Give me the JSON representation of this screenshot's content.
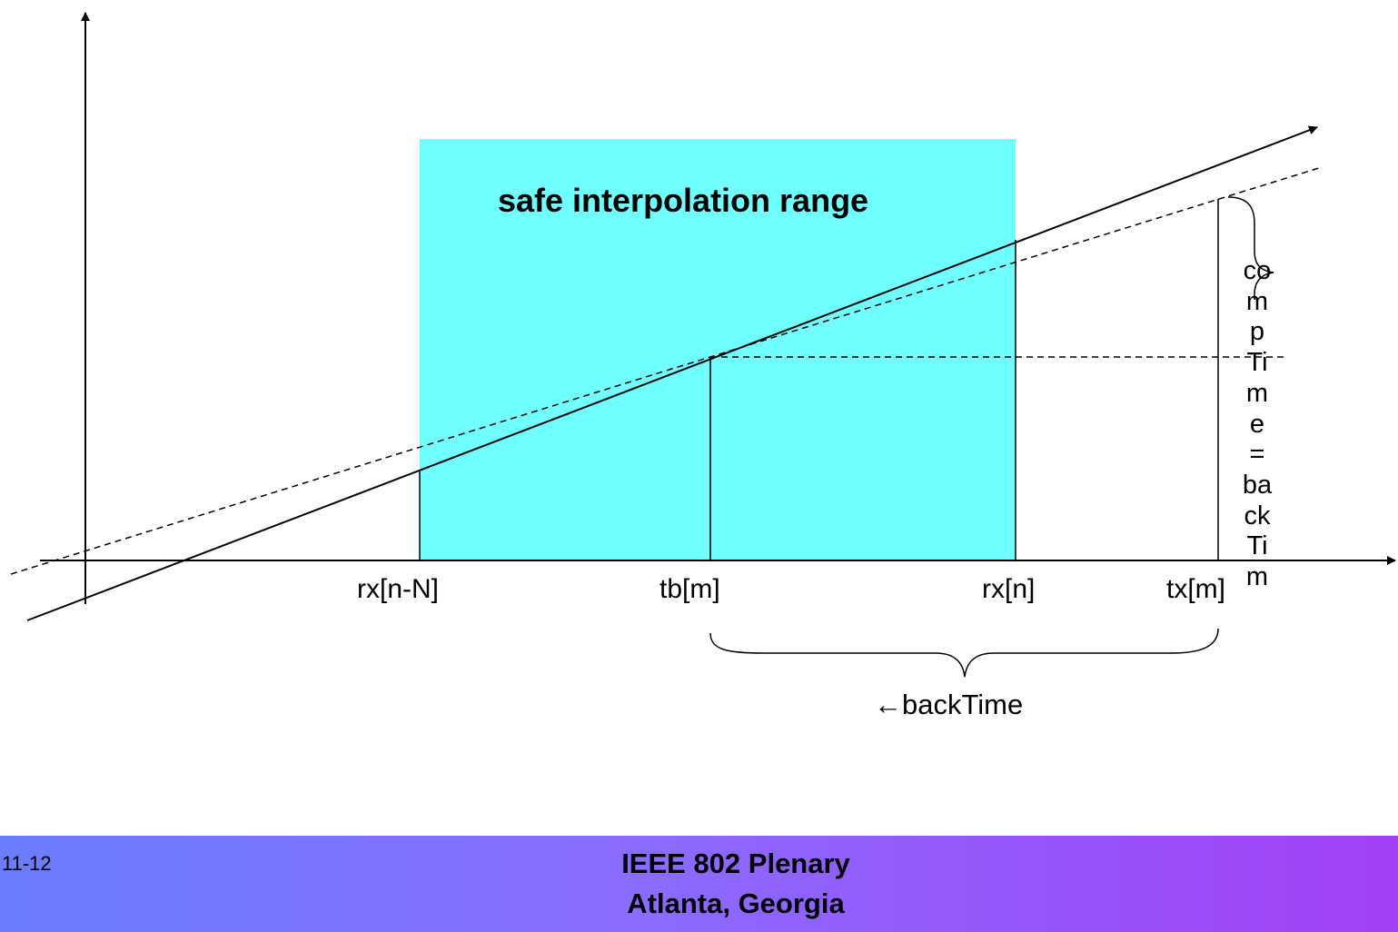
{
  "region": {
    "label": "safe interpolation range",
    "color": "#71ffff"
  },
  "axis_labels": {
    "rx_n_minus_N": "rx[n-N]",
    "tb_m": "tb[m]",
    "rx_n": "rx[n]",
    "tx_m": "tx[m]"
  },
  "annotations": {
    "back_time": "←backTime",
    "vertical_text": "comp Time = backTim"
  },
  "footer": {
    "slide_number": "11-12",
    "title_line1": "IEEE 802 Plenary",
    "title_line2": "Atlanta, Georgia",
    "gradient_start": "#6b7cff",
    "gradient_end": "#a241f5"
  }
}
